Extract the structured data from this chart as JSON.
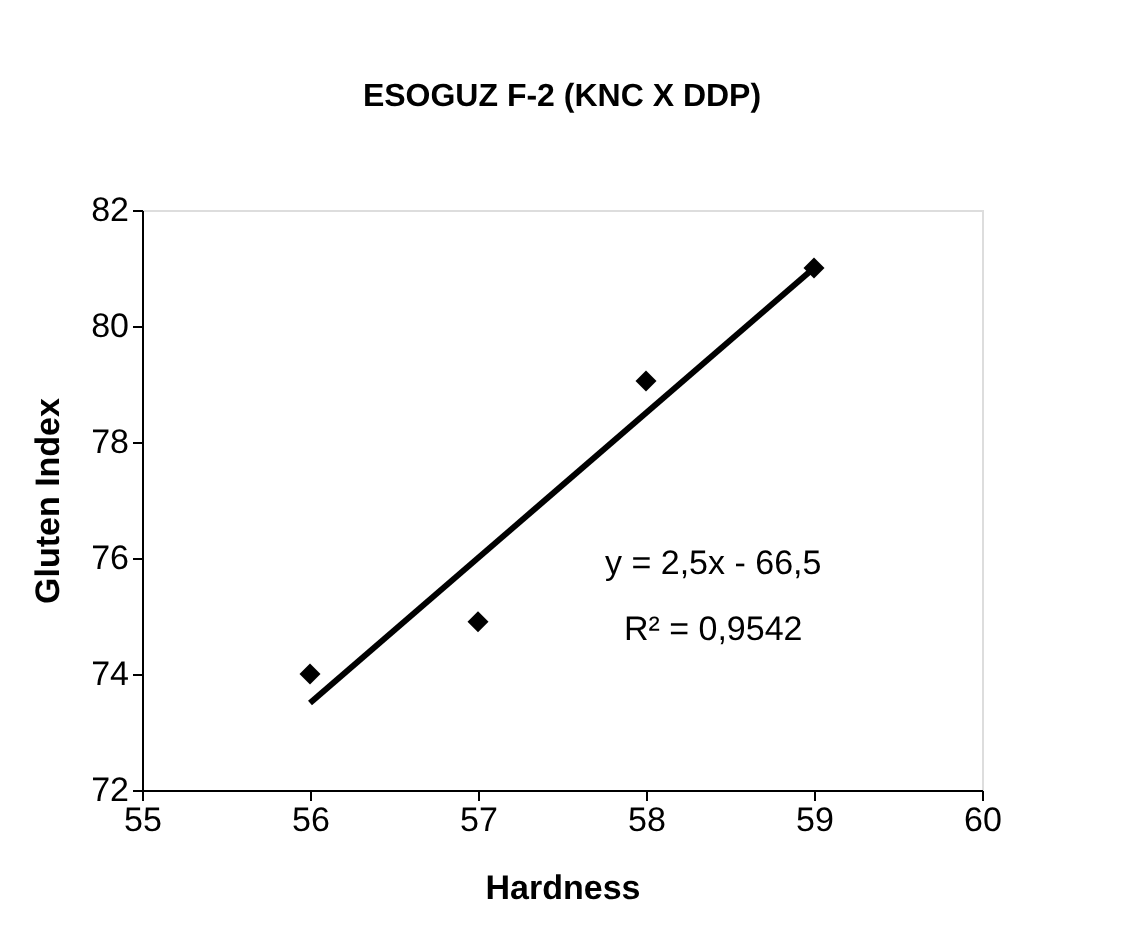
{
  "chart_data": {
    "type": "scatter",
    "title": "ESOGUZ F-2 (KNC X DDP)",
    "xlabel": "Hardness",
    "ylabel": "Gluten Index",
    "series": [
      {
        "color": "#000000",
        "marker": "diamond",
        "x": [
          56,
          57,
          58,
          59
        ],
        "values": [
          74,
          74.9,
          79.05,
          81
        ]
      },
      {
        "type": "line",
        "color": "#000000",
        "line_style": "solid",
        "x": [
          56,
          59
        ],
        "values": [
          73.5,
          81
        ]
      }
    ],
    "xlim": [
      55,
      60
    ],
    "xticks": [
      55,
      56,
      57,
      58,
      59,
      60
    ],
    "ylim": [
      72,
      82
    ],
    "yticks": [
      72,
      74,
      76,
      78,
      80,
      82
    ],
    "grid": false,
    "annotations": [
      "y = 2,5x - 66,5",
      "R² = 0,9542"
    ]
  }
}
